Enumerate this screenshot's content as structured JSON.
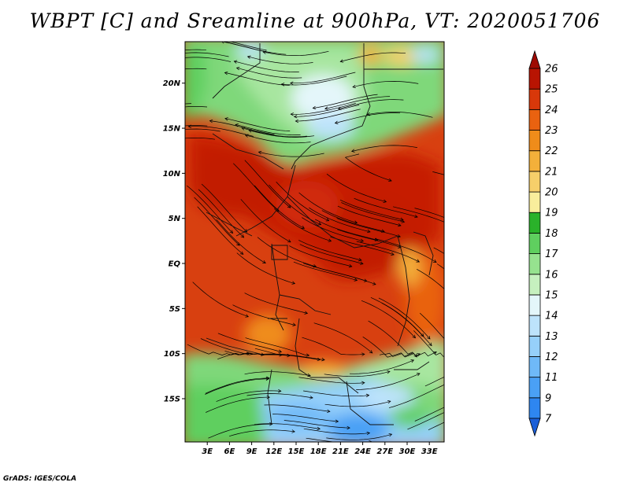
{
  "title": "WBPT [C] and Sreamline at 900hPa, VT: 2020051706",
  "credit": "GrADS: IGES/COLA",
  "map": {
    "lat_labels": [
      "20N",
      "15N",
      "10N",
      "5N",
      "EQ",
      "5S",
      "10S",
      "15S"
    ],
    "lat_values": [
      20,
      15,
      10,
      5,
      0,
      -5,
      -10,
      -15
    ],
    "lon_labels": [
      "3E",
      "6E",
      "9E",
      "12E",
      "15E",
      "18E",
      "21E",
      "24E",
      "27E",
      "30E",
      "33E"
    ],
    "lon_values": [
      3,
      6,
      9,
      12,
      15,
      18,
      21,
      24,
      27,
      30,
      33
    ],
    "lat_range": [
      -19.8,
      24.6
    ],
    "lon_range": [
      0,
      35
    ]
  },
  "colorbar": {
    "labels": [
      "7",
      "9",
      "11",
      "12",
      "13",
      "14",
      "15",
      "16",
      "17",
      "18",
      "19",
      "20",
      "21",
      "22",
      "23",
      "24",
      "25",
      "26"
    ],
    "colors": [
      "#1e6ee8",
      "#2e86f0",
      "#4aa0f5",
      "#6fb9f8",
      "#96d0fa",
      "#bde3fb",
      "#e4f6fa",
      "#c6f0bf",
      "#96e28f",
      "#5fcf5f",
      "#2ab22a",
      "#f9ee9c",
      "#f6cf6a",
      "#f3b03a",
      "#ef8c1a",
      "#e96210",
      "#d8380a",
      "#b81402"
    ],
    "top_color": "#9e0a02",
    "bottom_color": "#1a5fd8"
  }
}
